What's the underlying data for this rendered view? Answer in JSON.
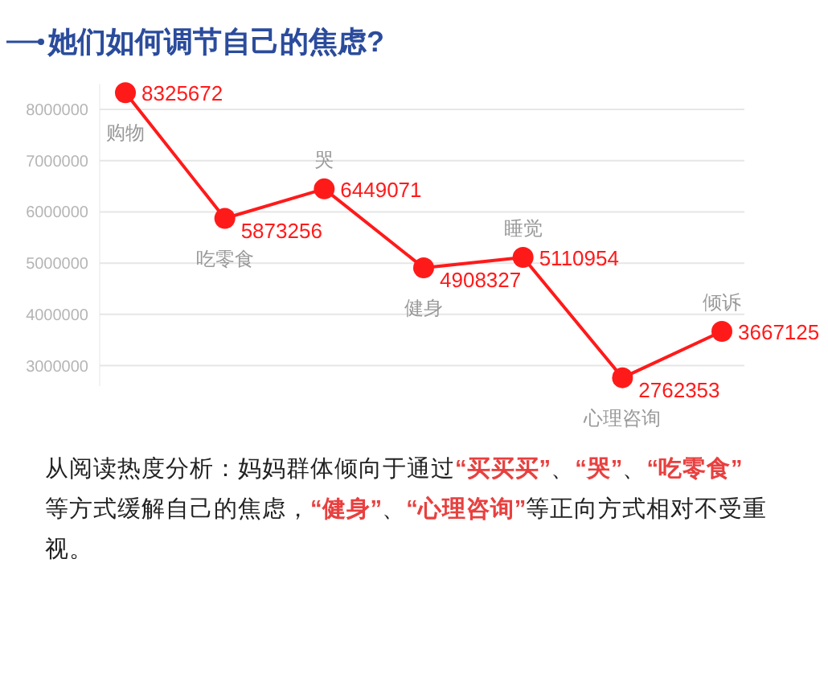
{
  "chart_data": {
    "type": "line",
    "title": "她们如何调节自己的焦虑?",
    "categories": [
      "购物",
      "吃零食",
      "哭",
      "健身",
      "睡觉",
      "心理咨询",
      "倾诉"
    ],
    "values": [
      8325672,
      5873256,
      6449071,
      4908327,
      5110954,
      2762353,
      3667125
    ],
    "color": "#ff1a1a",
    "ylim": [
      2600000,
      8500000
    ],
    "yticks": [
      3000000,
      4000000,
      5000000,
      6000000,
      7000000,
      8000000
    ],
    "grid": "y",
    "marker": "circle",
    "data_labels": true,
    "annotations": [
      "从阅读热度分析：妈妈群体倾向于通过“买买买”、“哭”、“吃零食”等方式缓解自己的焦虑，“健身”、“心理咨询”等正向方式相对不受重视。"
    ]
  }
}
